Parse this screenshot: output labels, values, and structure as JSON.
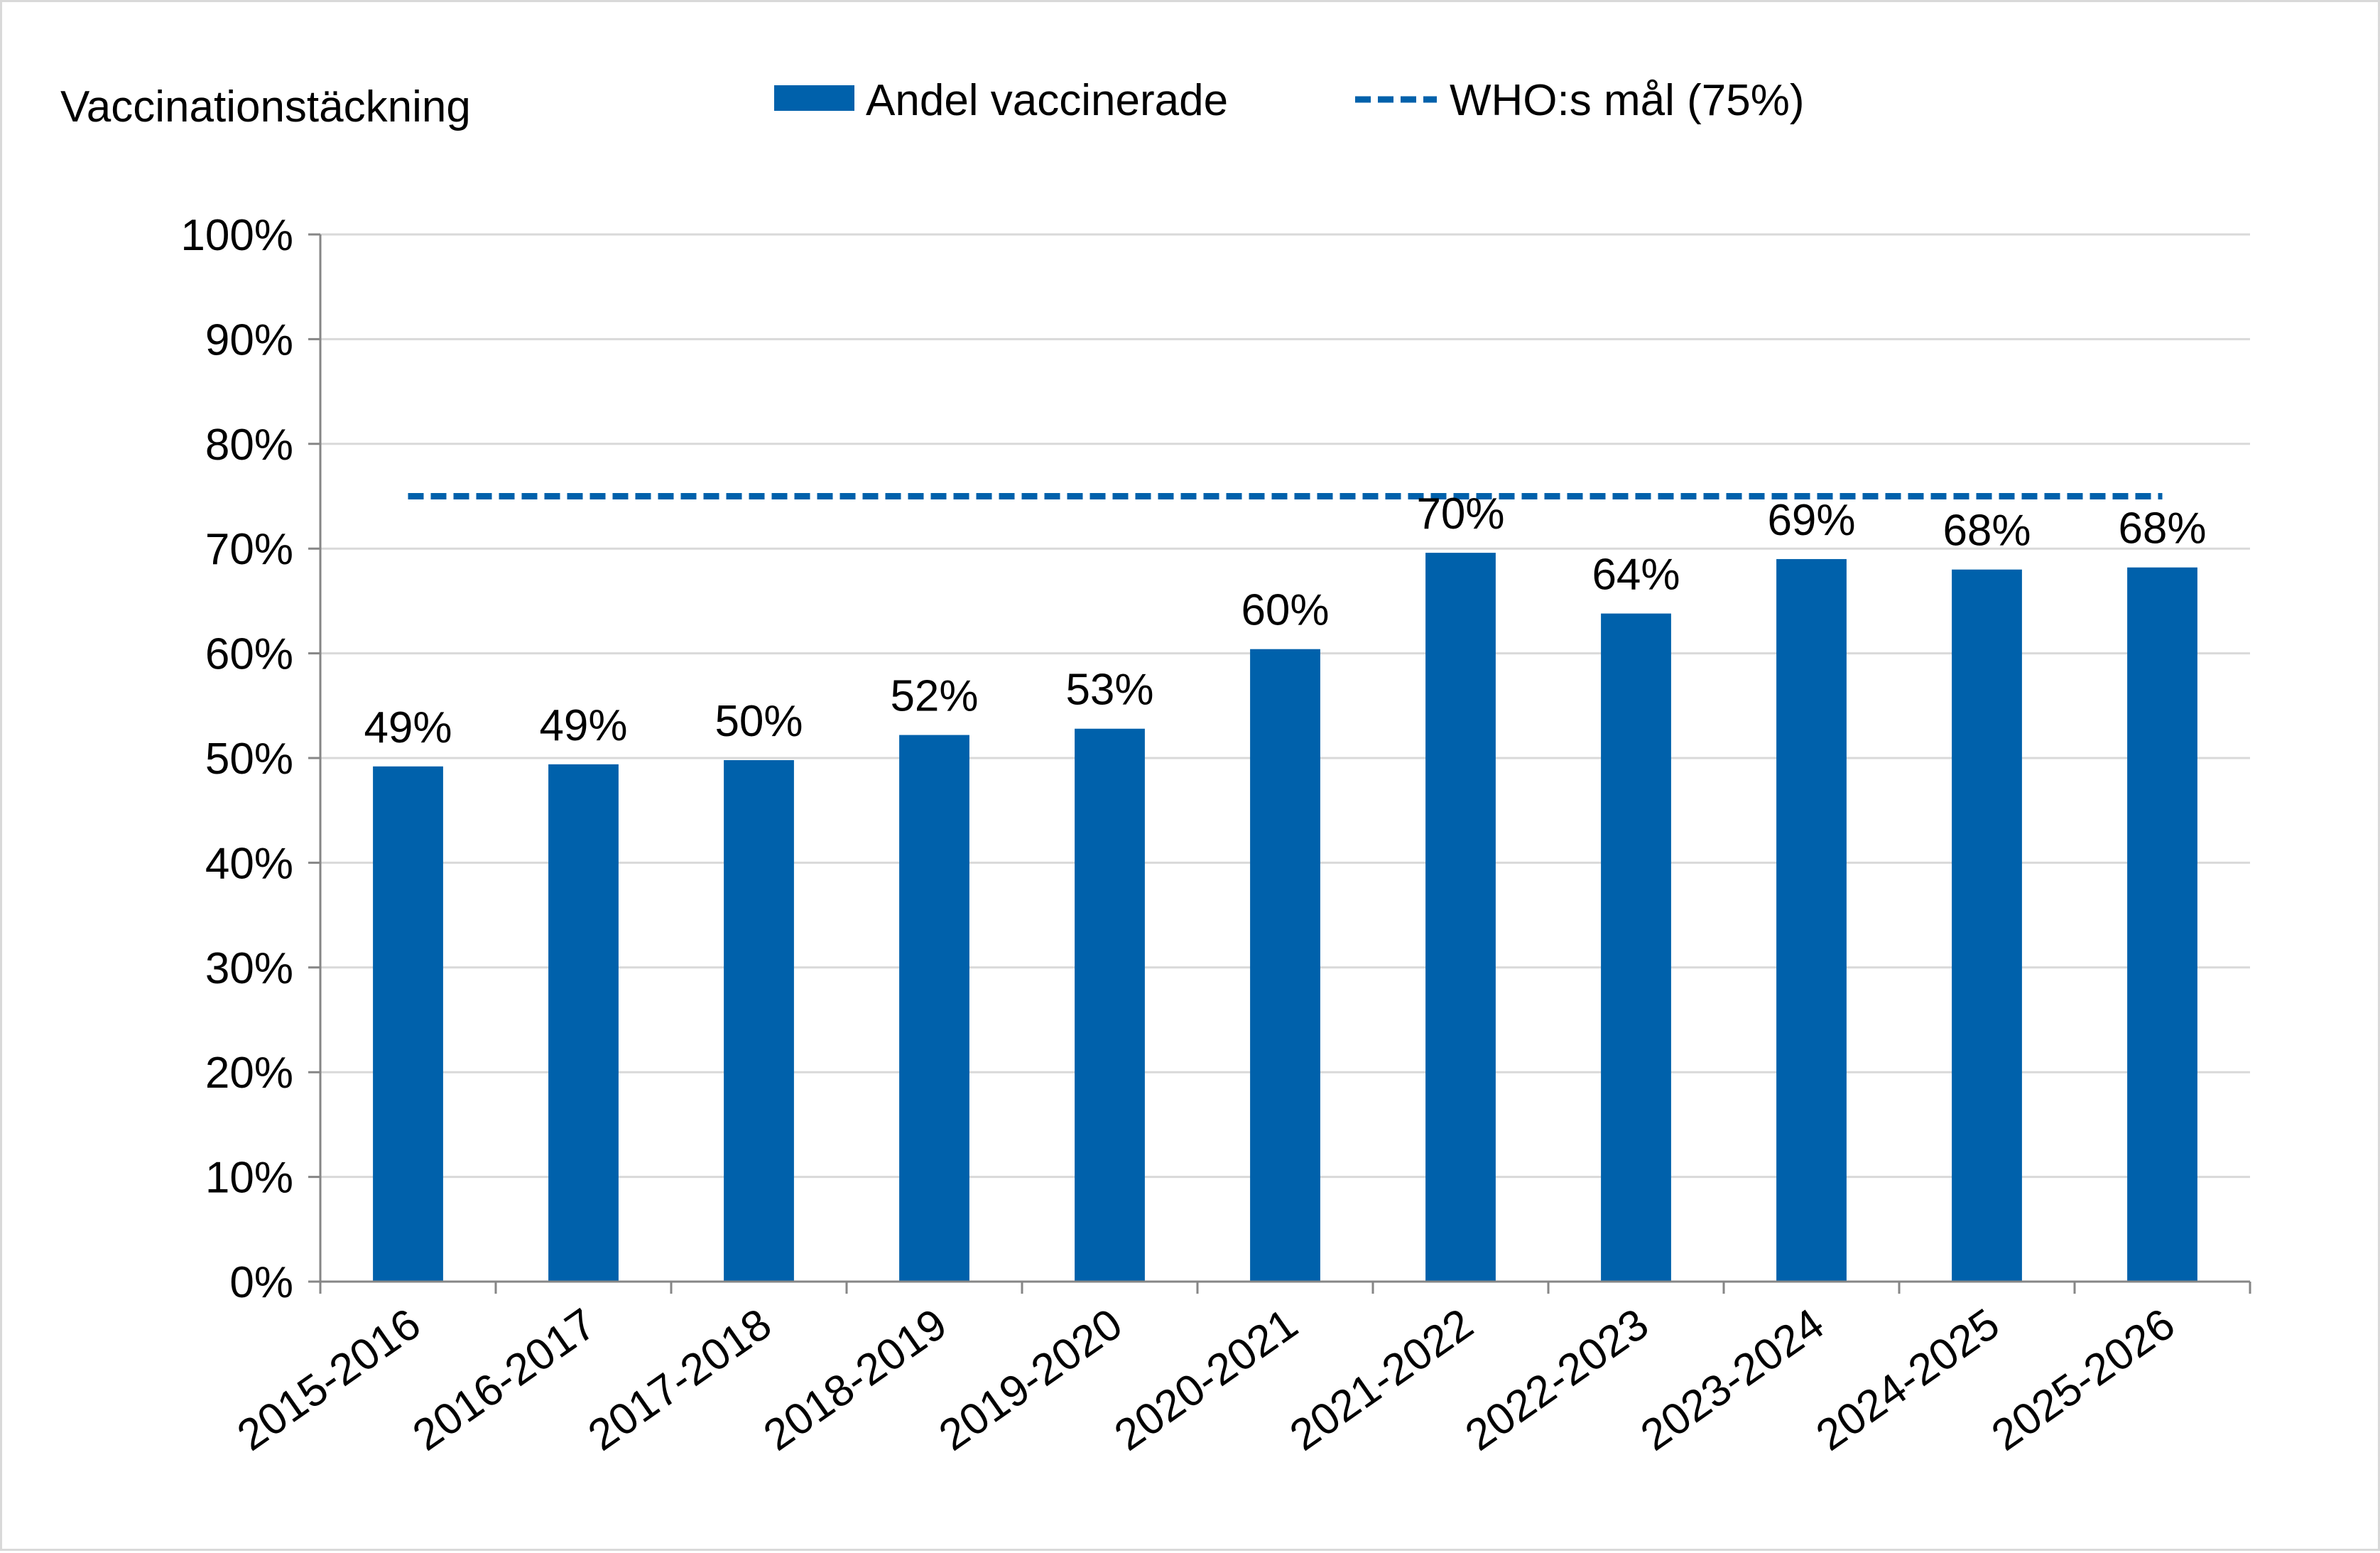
{
  "chart_data": {
    "type": "bar",
    "title": "",
    "ylabel": "Vaccinationstäckning",
    "xlabel": "",
    "categories": [
      "2015-2016",
      "2016-2017",
      "2017-2018",
      "2018-2019",
      "2019-2020",
      "2020-2021",
      "2021-2022",
      "2022-2023",
      "2023-2024",
      "2024-2025",
      "2025-2026"
    ],
    "series": [
      {
        "name": "Andel vaccinerade",
        "values": [
          49.2,
          49.4,
          49.8,
          52.2,
          52.8,
          60.4,
          69.6,
          63.8,
          69.0,
          68.0,
          68.2
        ],
        "labels": [
          "49%",
          "49%",
          "50%",
          "52%",
          "53%",
          "60%",
          "70%",
          "64%",
          "69%",
          "68%",
          "68%"
        ],
        "color": "#0061ab"
      }
    ],
    "reference_line": {
      "name": "WHO:s mål (75%)",
      "value": 75,
      "style": "dashed",
      "color": "#0061ab"
    },
    "ylim": [
      0,
      100
    ],
    "yticks": [
      0,
      10,
      20,
      30,
      40,
      50,
      60,
      70,
      80,
      90,
      100
    ],
    "ytick_labels": [
      "0%",
      "10%",
      "20%",
      "30%",
      "40%",
      "50%",
      "60%",
      "70%",
      "80%",
      "90%",
      "100%"
    ],
    "grid": true,
    "legend": "top-center"
  }
}
